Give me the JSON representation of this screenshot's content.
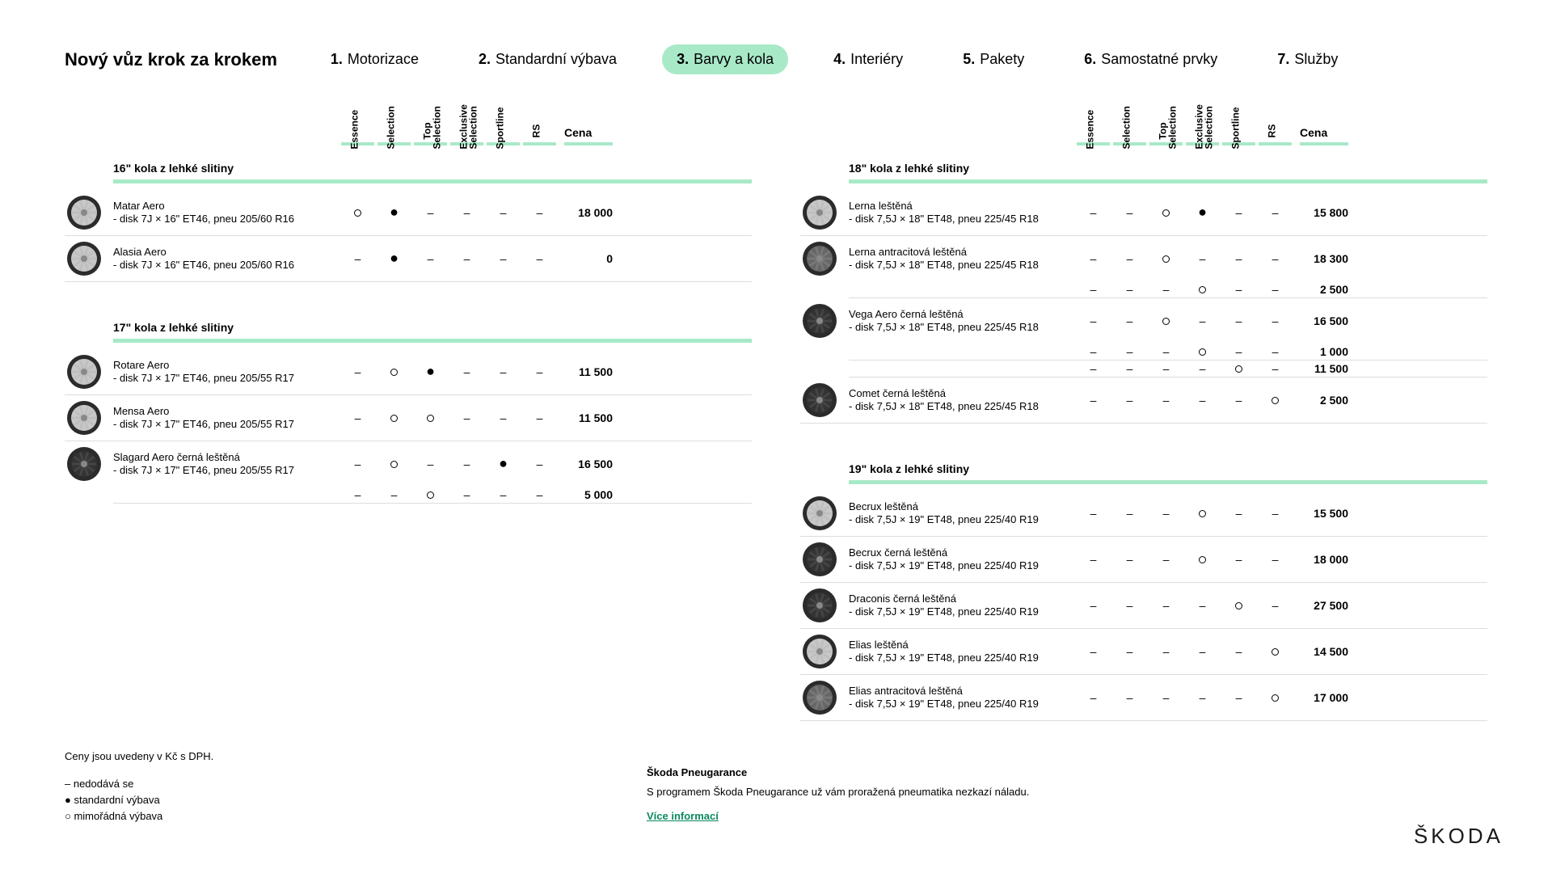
{
  "nav": {
    "title": "Nový vůz krok za krokem",
    "steps": [
      {
        "num": "1.",
        "label": "Motorizace"
      },
      {
        "num": "2.",
        "label": "Standardní výbava"
      },
      {
        "num": "3.",
        "label": "Barvy a kola"
      },
      {
        "num": "4.",
        "label": "Interiéry"
      },
      {
        "num": "5.",
        "label": "Pakety"
      },
      {
        "num": "6.",
        "label": "Samostatné prvky"
      },
      {
        "num": "7.",
        "label": "Služby"
      }
    ],
    "active_index": 2
  },
  "trims": [
    "Essence",
    "Selection",
    "Top\nSelection",
    "Exclusive\nSelection",
    "Sportline",
    "RS"
  ],
  "price_label": "Cena",
  "accent_color": "#a8e9c8",
  "marks": {
    "dash": "–",
    "dot": "●",
    "circle": "○"
  },
  "sections_left": [
    {
      "title": "16\" kola z lehké slitiny",
      "rows": [
        {
          "name": "Matar Aero",
          "spec": "- disk 7J × 16\" ET46, pneu 205/60 R16",
          "wheel": "silver",
          "cells": [
            "circle",
            "dot",
            "dash",
            "dash",
            "dash",
            "dash"
          ],
          "price": "18 000"
        },
        {
          "name": "Alasia Aero",
          "spec": "- disk 7J × 16\" ET46, pneu 205/60 R16",
          "wheel": "silver",
          "cells": [
            "dash",
            "dot",
            "dash",
            "dash",
            "dash",
            "dash"
          ],
          "price": "0"
        }
      ]
    },
    {
      "title": "17\" kola z lehké slitiny",
      "rows": [
        {
          "name": "Rotare Aero",
          "spec": "- disk 7J × 17\" ET46, pneu 205/55 R17",
          "wheel": "silver",
          "cells": [
            "dash",
            "circle",
            "dot",
            "dash",
            "dash",
            "dash"
          ],
          "price": "11 500"
        },
        {
          "name": "Mensa Aero",
          "spec": "- disk 7J × 17\" ET46, pneu 205/55 R17",
          "wheel": "silver",
          "cells": [
            "dash",
            "circle",
            "circle",
            "dash",
            "dash",
            "dash"
          ],
          "price": "11 500"
        },
        {
          "name": "Slagard Aero černá leštěná",
          "spec": "- disk 7J × 17\" ET46, pneu 205/55 R17",
          "wheel": "dark",
          "multi": [
            {
              "cells": [
                "dash",
                "circle",
                "dash",
                "dash",
                "dot",
                "dash"
              ],
              "price": "16 500"
            },
            {
              "cells": [
                "dash",
                "dash",
                "circle",
                "dash",
                "dash",
                "dash"
              ],
              "price": "5 000"
            }
          ]
        }
      ]
    }
  ],
  "sections_right": [
    {
      "title": "18\" kola z lehké slitiny",
      "rows": [
        {
          "name": "Lerna leštěná",
          "spec": "- disk 7,5J × 18\" ET48, pneu 225/45 R18",
          "wheel": "silver",
          "cells": [
            "dash",
            "dash",
            "circle",
            "dot",
            "dash",
            "dash"
          ],
          "price": "15 800"
        },
        {
          "name": "Lerna antracitová leštěná",
          "spec": "- disk 7,5J × 18\" ET48, pneu 225/45 R18",
          "wheel": "anthra",
          "multi": [
            {
              "cells": [
                "dash",
                "dash",
                "circle",
                "dash",
                "dash",
                "dash"
              ],
              "price": "18 300"
            },
            {
              "cells": [
                "dash",
                "dash",
                "dash",
                "circle",
                "dash",
                "dash"
              ],
              "price": "2 500"
            }
          ]
        },
        {
          "name": "Vega Aero černá leštěná",
          "spec": "- disk 7,5J × 18\" ET48, pneu 225/45 R18",
          "wheel": "dark",
          "multi": [
            {
              "cells": [
                "dash",
                "dash",
                "circle",
                "dash",
                "dash",
                "dash"
              ],
              "price": "16 500"
            },
            {
              "cells": [
                "dash",
                "dash",
                "dash",
                "circle",
                "dash",
                "dash"
              ],
              "price": "1 000"
            },
            {
              "cells": [
                "dash",
                "dash",
                "dash",
                "dash",
                "circle",
                "dash"
              ],
              "price": "11 500"
            }
          ]
        },
        {
          "name": "Comet černá leštěná",
          "spec": "- disk 7,5J × 18\" ET48, pneu 225/45 R18",
          "wheel": "dark",
          "cells": [
            "dash",
            "dash",
            "dash",
            "dash",
            "dash",
            "circle"
          ],
          "price": "2 500"
        }
      ]
    },
    {
      "title": "19\" kola z lehké slitiny",
      "rows": [
        {
          "name": "Becrux leštěná",
          "spec": "- disk 7,5J × 19\" ET48, pneu 225/40 R19",
          "wheel": "silver",
          "cells": [
            "dash",
            "dash",
            "dash",
            "circle",
            "dash",
            "dash"
          ],
          "price": "15 500"
        },
        {
          "name": "Becrux černá leštěná",
          "spec": "- disk 7,5J × 19\" ET48, pneu 225/40 R19",
          "wheel": "dark",
          "cells": [
            "dash",
            "dash",
            "dash",
            "circle",
            "dash",
            "dash"
          ],
          "price": "18 000"
        },
        {
          "name": "Draconis černá leštěná",
          "spec": "- disk 7,5J × 19\" ET48, pneu 225/40 R19",
          "wheel": "dark",
          "cells": [
            "dash",
            "dash",
            "dash",
            "dash",
            "circle",
            "dash"
          ],
          "price": "27 500"
        },
        {
          "name": "Elias leštěná",
          "spec": "- disk 7,5J × 19\" ET48, pneu 225/40 R19",
          "wheel": "silver",
          "cells": [
            "dash",
            "dash",
            "dash",
            "dash",
            "dash",
            "circle"
          ],
          "price": "14 500"
        },
        {
          "name": "Elias antracitová leštěná",
          "spec": "- disk 7,5J × 19\" ET48, pneu 225/40 R19",
          "wheel": "anthra",
          "cells": [
            "dash",
            "dash",
            "dash",
            "dash",
            "dash",
            "circle"
          ],
          "price": "17 000"
        }
      ]
    }
  ],
  "notes": {
    "lead": "Ceny jsou uvedeny v Kč s DPH.",
    "legend": [
      "–  nedodává se",
      "●  standardní výbava",
      "○  mimořádná výbava"
    ]
  },
  "pneu": {
    "title": "Škoda Pneugarance",
    "text": "S programem Škoda Pneugarance už vám proražená pneumatika nezkazí náladu.",
    "link": "Více informací"
  },
  "brand": "ŠKODA"
}
